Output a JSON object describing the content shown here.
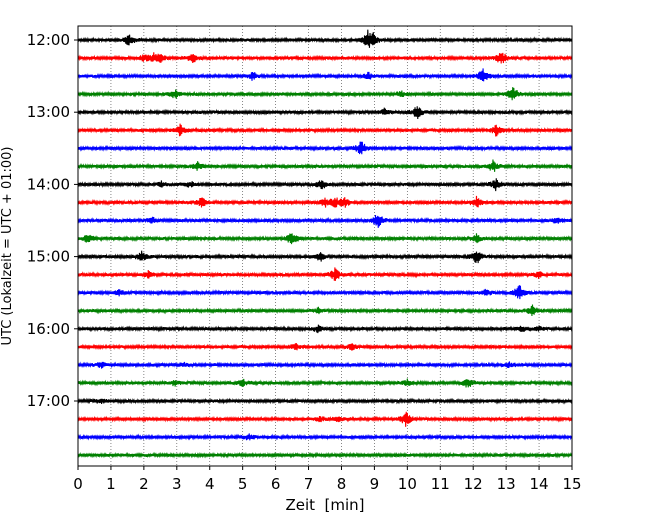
{
  "chart_data": {
    "type": "line",
    "chart_kind": "helicorder",
    "xlabel": "Zeit  [min]",
    "ylabel": "UTC (Lokalzeit = UTC + 01:00)",
    "xlim": [
      0,
      15
    ],
    "x_ticks": [
      0,
      1,
      2,
      3,
      4,
      5,
      6,
      7,
      8,
      9,
      10,
      11,
      12,
      13,
      14,
      15
    ],
    "x_grid": "dotted vertical lines at every minute",
    "trace_interval_minutes": 15,
    "y_ticks": [
      "12:00",
      "13:00",
      "14:00",
      "15:00",
      "16:00",
      "17:00"
    ],
    "trace_colors": [
      "#000000",
      "#ff0000",
      "#0000ff",
      "#008000"
    ],
    "traces": [
      {
        "start": "12:00",
        "events": [
          [
            1.55,
            0.65
          ],
          [
            8.8,
            0.85
          ],
          [
            8.95,
            0.6
          ]
        ]
      },
      {
        "start": "12:15",
        "events": [
          [
            2.0,
            0.35
          ],
          [
            2.3,
            0.4
          ],
          [
            2.5,
            0.35
          ],
          [
            3.5,
            0.5
          ],
          [
            12.85,
            0.8
          ]
        ]
      },
      {
        "start": "12:30",
        "events": [
          [
            5.3,
            0.45
          ],
          [
            8.8,
            0.4
          ],
          [
            12.3,
            0.9
          ]
        ]
      },
      {
        "start": "12:45",
        "events": [
          [
            2.95,
            0.45
          ],
          [
            9.8,
            0.35
          ],
          [
            13.2,
            0.85
          ]
        ]
      },
      {
        "start": "13:00",
        "events": [
          [
            9.3,
            0.4
          ],
          [
            10.3,
            0.75
          ]
        ]
      },
      {
        "start": "13:15",
        "events": [
          [
            3.1,
            0.65
          ],
          [
            12.7,
            0.6
          ]
        ]
      },
      {
        "start": "13:30",
        "events": [
          [
            8.6,
            0.85
          ]
        ]
      },
      {
        "start": "13:45",
        "events": [
          [
            3.6,
            0.55
          ],
          [
            12.6,
            0.7
          ]
        ]
      },
      {
        "start": "14:00",
        "events": [
          [
            2.55,
            0.3
          ],
          [
            3.4,
            0.3
          ],
          [
            7.4,
            0.5
          ],
          [
            12.7,
            0.7
          ]
        ]
      },
      {
        "start": "14:15",
        "events": [
          [
            3.75,
            0.55
          ],
          [
            7.5,
            0.5
          ],
          [
            7.8,
            0.55
          ],
          [
            8.1,
            0.5
          ],
          [
            12.1,
            0.6
          ]
        ]
      },
      {
        "start": "14:30",
        "events": [
          [
            2.25,
            0.4
          ],
          [
            9.1,
            0.85
          ],
          [
            14.55,
            0.35
          ]
        ]
      },
      {
        "start": "14:45",
        "events": [
          [
            0.3,
            0.5
          ],
          [
            6.5,
            0.75
          ],
          [
            12.1,
            0.45
          ]
        ]
      },
      {
        "start": "15:00",
        "events": [
          [
            1.95,
            0.6
          ],
          [
            7.35,
            0.5
          ],
          [
            12.1,
            0.9
          ]
        ]
      },
      {
        "start": "15:15",
        "events": [
          [
            2.15,
            0.45
          ],
          [
            7.8,
            0.75
          ],
          [
            14.0,
            0.4
          ]
        ]
      },
      {
        "start": "15:30",
        "events": [
          [
            1.25,
            0.3
          ],
          [
            12.4,
            0.4
          ],
          [
            13.4,
            0.85
          ]
        ]
      },
      {
        "start": "15:45",
        "events": [
          [
            7.3,
            0.3
          ],
          [
            13.8,
            0.6
          ]
        ]
      },
      {
        "start": "16:00",
        "events": [
          [
            7.3,
            0.35
          ],
          [
            13.5,
            0.3
          ],
          [
            14.0,
            0.3
          ]
        ]
      },
      {
        "start": "16:15",
        "events": [
          [
            6.6,
            0.35
          ],
          [
            8.3,
            0.35
          ]
        ]
      },
      {
        "start": "16:30",
        "events": [
          [
            0.7,
            0.3
          ],
          [
            3.2,
            0.25
          ],
          [
            13.1,
            0.25
          ]
        ]
      },
      {
        "start": "16:45",
        "events": [
          [
            2.95,
            0.3
          ],
          [
            5.0,
            0.35
          ],
          [
            10.0,
            0.35
          ],
          [
            11.85,
            0.6
          ]
        ]
      },
      {
        "start": "17:00",
        "events": [
          [
            0.7,
            0.25
          ]
        ]
      },
      {
        "start": "17:15",
        "events": [
          [
            7.35,
            0.3
          ],
          [
            7.9,
            0.3
          ],
          [
            9.95,
            0.8
          ]
        ]
      },
      {
        "start": "17:30",
        "events": [
          [
            5.2,
            0.35
          ]
        ]
      },
      {
        "start": "17:45",
        "events": []
      }
    ]
  }
}
